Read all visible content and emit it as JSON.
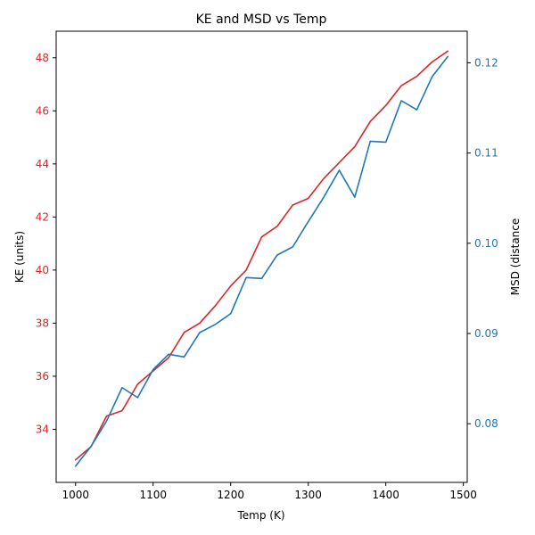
{
  "chart_data": {
    "type": "line",
    "title": "KE and MSD vs Temp",
    "xlabel": "Temp (K)",
    "ylabel_left": "KE (units)",
    "ylabel_right": "MSD (distance",
    "xlim": [
      975,
      1505
    ],
    "ylim_left": [
      32.0,
      49.0
    ],
    "ylim_right": [
      0.0735,
      0.1235
    ],
    "x_ticks": [
      1000,
      1100,
      1200,
      1300,
      1400,
      1500
    ],
    "y_ticks_left": [
      34,
      36,
      38,
      40,
      42,
      44,
      46,
      48
    ],
    "y_ticks_right": [
      0.08,
      0.09,
      0.1,
      0.11,
      0.12
    ],
    "grid": false,
    "x": [
      1000,
      1020,
      1040,
      1060,
      1080,
      1100,
      1120,
      1140,
      1160,
      1180,
      1200,
      1220,
      1240,
      1260,
      1280,
      1300,
      1320,
      1340,
      1360,
      1380,
      1400,
      1420,
      1440,
      1460,
      1480
    ],
    "series": [
      {
        "axis": "left",
        "color": "#d62728",
        "values": [
          32.85,
          33.35,
          34.5,
          34.7,
          35.7,
          36.2,
          36.7,
          37.65,
          38.0,
          38.65,
          39.4,
          40.0,
          41.25,
          41.65,
          42.45,
          42.7,
          43.45,
          44.05,
          44.65,
          45.6,
          46.2,
          46.95,
          47.3,
          47.85,
          48.25
        ]
      },
      {
        "axis": "right",
        "color": "#1f77b4",
        "values": [
          0.0753,
          0.0775,
          0.0803,
          0.084,
          0.0829,
          0.086,
          0.0877,
          0.0874,
          0.0901,
          0.091,
          0.0922,
          0.0962,
          0.0961,
          0.0987,
          0.0996,
          0.1024,
          0.1051,
          0.1081,
          0.1051,
          0.1113,
          0.1112,
          0.1158,
          0.1148,
          0.1185,
          0.1207
        ]
      }
    ],
    "colors": {
      "left_axis": "#d62728",
      "right_axis": "#1f77b4"
    }
  }
}
